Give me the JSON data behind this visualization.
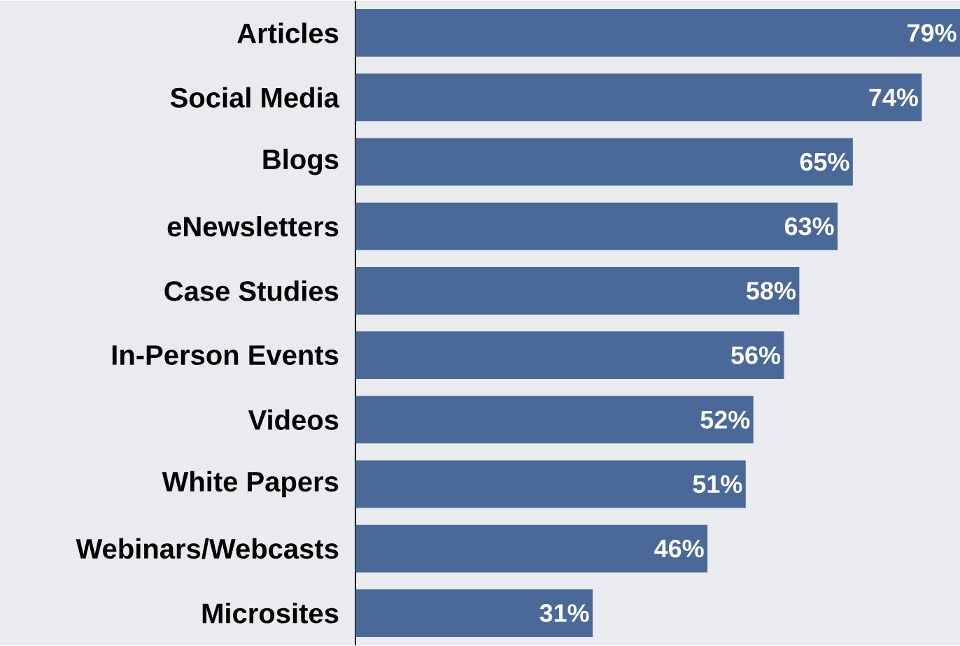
{
  "chart_data": {
    "type": "bar",
    "orientation": "horizontal",
    "categories": [
      "Articles",
      "Social Media",
      "Blogs",
      "eNewsletters",
      "Case Studies",
      "In-Person Events",
      "Videos",
      "White Papers",
      "Webinars/Webcasts",
      "Microsites"
    ],
    "values": [
      79,
      74,
      65,
      63,
      58,
      56,
      52,
      51,
      46,
      31
    ],
    "value_labels": [
      "79%",
      "74%",
      "65%",
      "63%",
      "58%",
      "56%",
      "52%",
      "51%",
      "46%",
      "31%"
    ],
    "color": "#4a6999"
  }
}
